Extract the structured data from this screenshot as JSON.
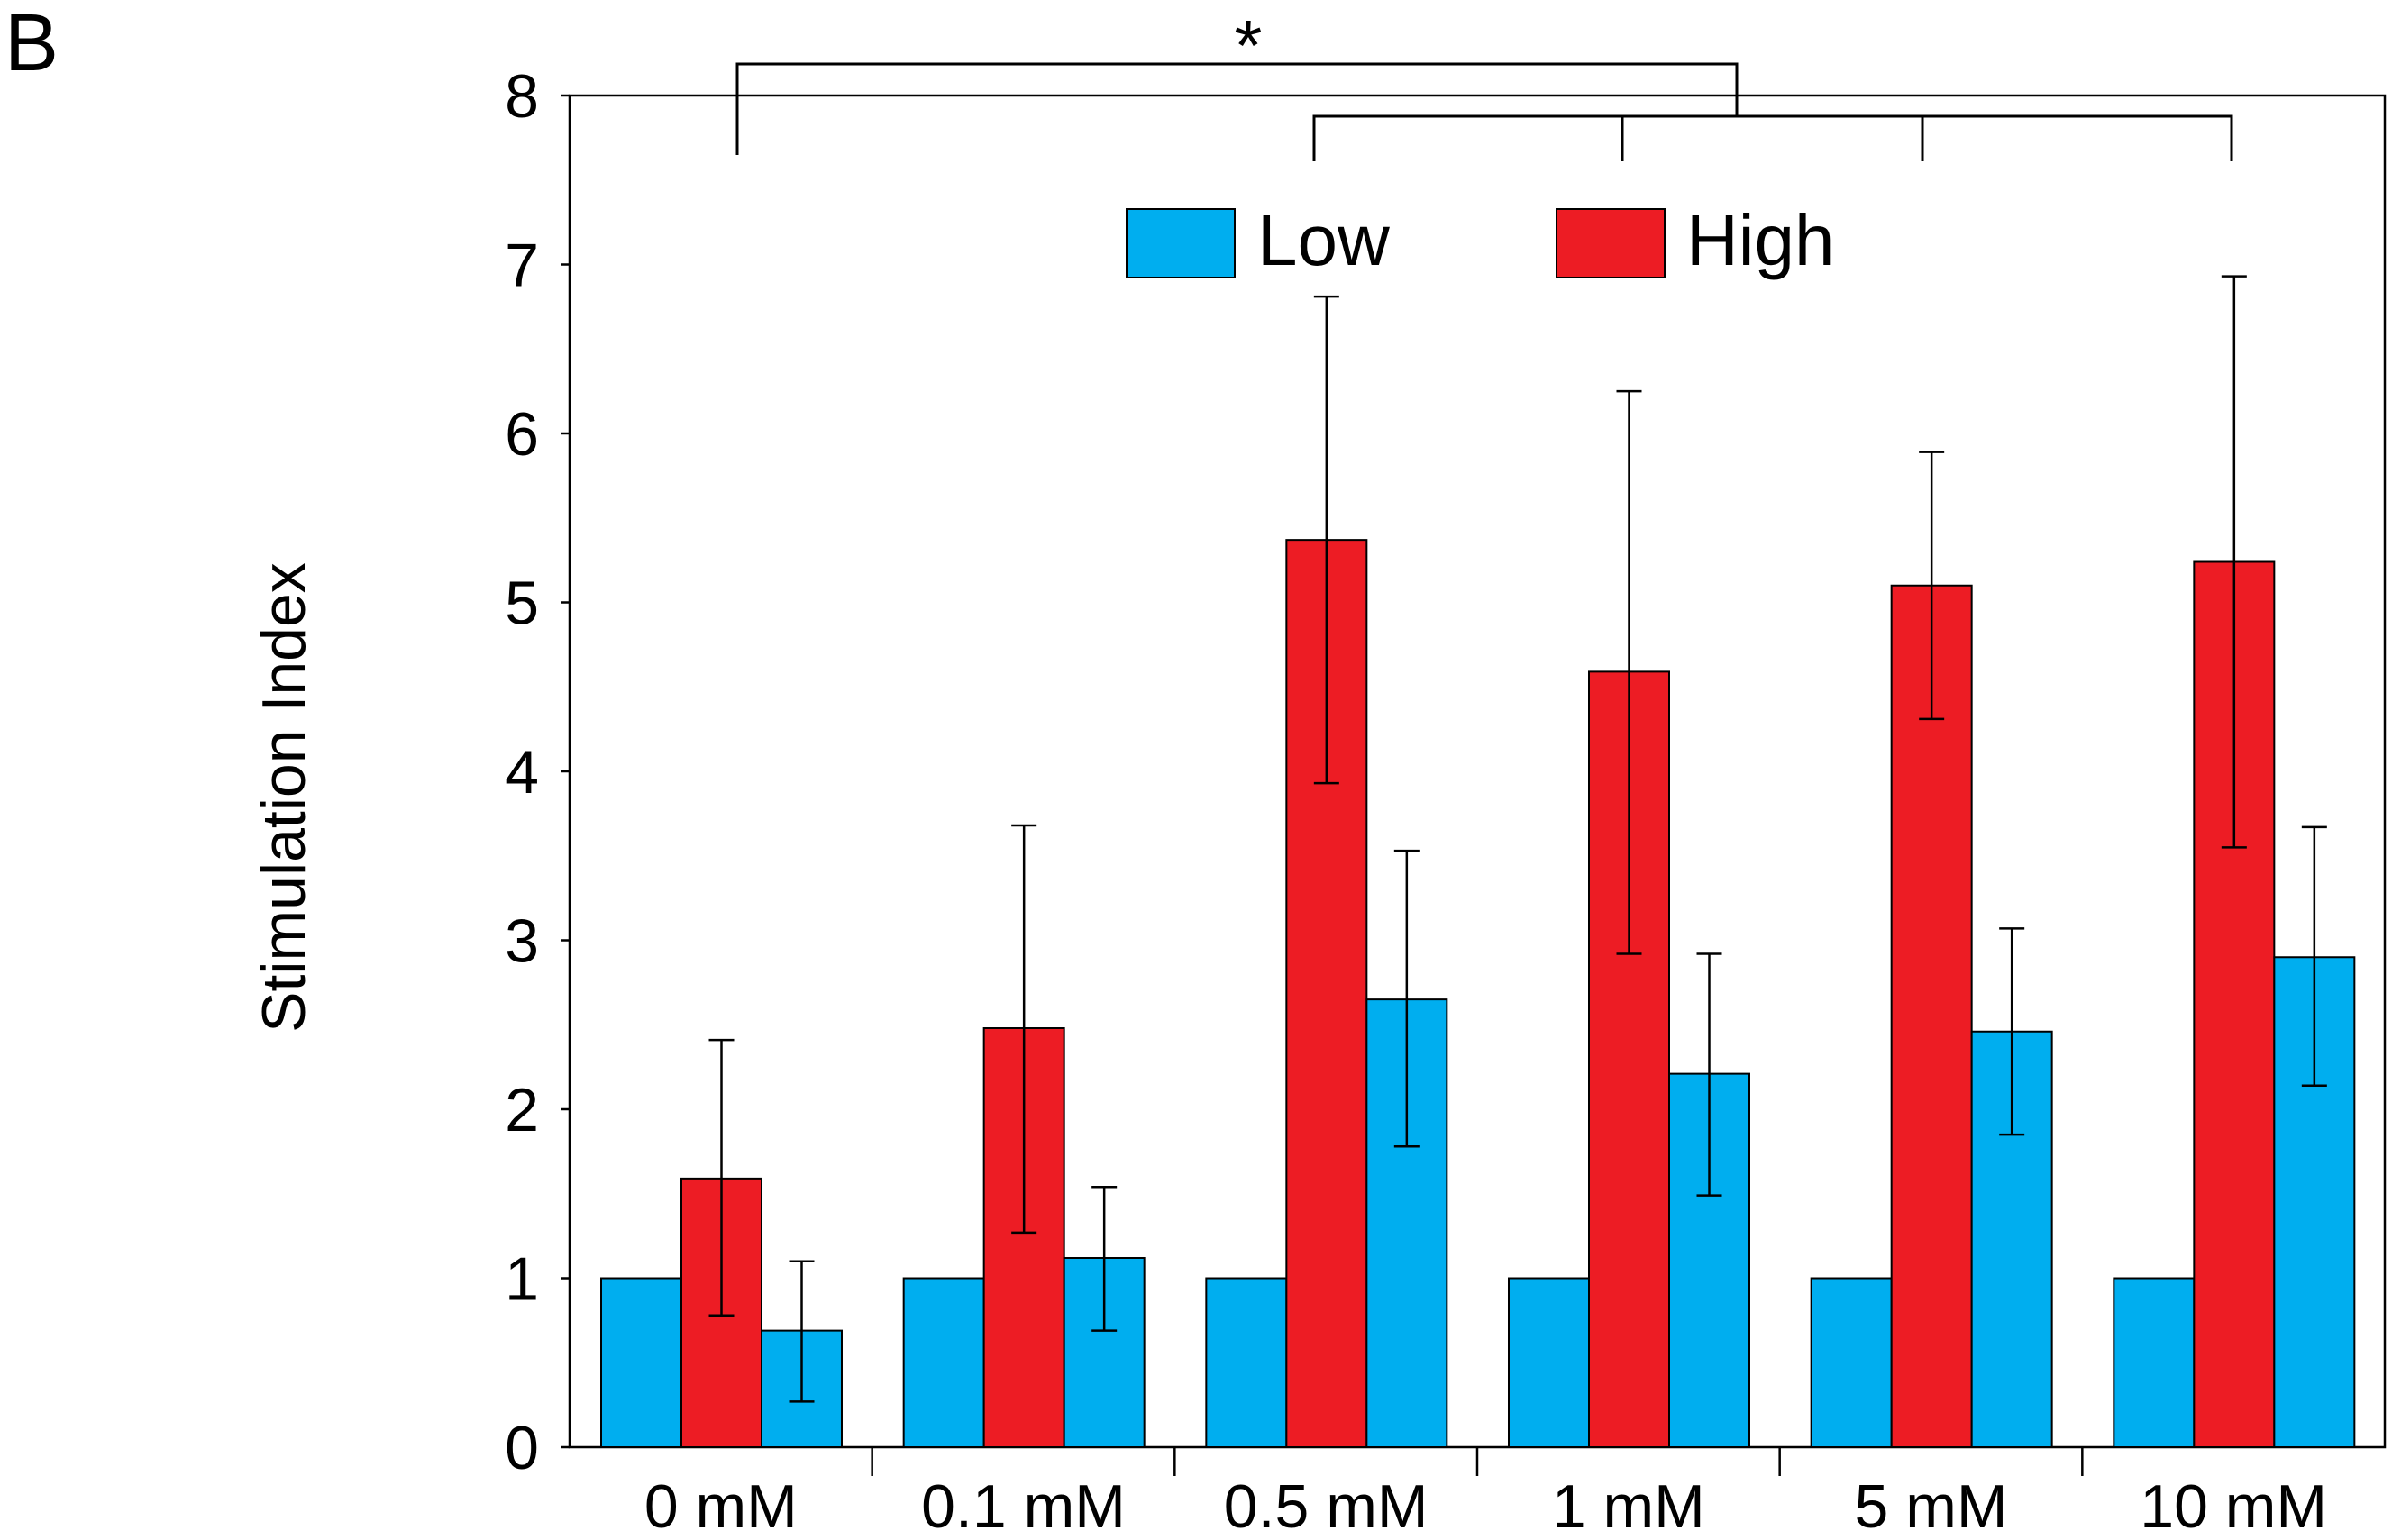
{
  "panel_label": "B",
  "colors": {
    "low": "#00AEEF",
    "high": "#ED1C24",
    "axis": "#000000"
  },
  "chart_data": {
    "type": "bar",
    "title": "",
    "xlabel": "",
    "ylabel": "Stimulation Index",
    "ylim": [
      0,
      8
    ],
    "yticks": [
      "0",
      "1",
      "2",
      "3",
      "4",
      "5",
      "6",
      "7",
      "8"
    ],
    "grid": false,
    "legend_position": "top-center",
    "categories": [
      "0 mM",
      "0.1 mM",
      "0.5 mM",
      "1 mM",
      "5 mM",
      "10 mM"
    ],
    "legend": [
      {
        "label": "Low",
        "color": "#00AEEF"
      },
      {
        "label": "High",
        "color": "#ED1C24"
      }
    ],
    "bar_order": [
      "Low (baseline)",
      "High",
      "Low"
    ],
    "series": [
      {
        "name": "Low (baseline)",
        "legend": "Low",
        "color": "#00AEEF",
        "values": [
          1,
          1,
          1,
          1,
          1,
          1
        ]
      },
      {
        "name": "High",
        "legend": "High",
        "color": "#ED1C24",
        "values": [
          1.59,
          2.48,
          5.37,
          4.59,
          5.1,
          5.24
        ],
        "err_low": [
          0.78,
          1.27,
          3.93,
          2.92,
          4.31,
          3.55
        ],
        "err_high": [
          2.41,
          3.68,
          6.81,
          6.25,
          5.89,
          6.93
        ]
      },
      {
        "name": "Low",
        "legend": "Low",
        "color": "#00AEEF",
        "values": [
          0.69,
          1.12,
          2.65,
          2.21,
          2.46,
          2.9
        ],
        "err_low": [
          0.27,
          0.69,
          1.78,
          1.49,
          1.85,
          2.14
        ],
        "err_high": [
          1.1,
          1.54,
          3.53,
          2.92,
          3.07,
          3.67
        ]
      }
    ],
    "significance": {
      "label": "*",
      "left_category": "0 mM",
      "right_categories": [
        "0.5 mM",
        "1 mM",
        "5 mM",
        "10 mM"
      ]
    }
  }
}
